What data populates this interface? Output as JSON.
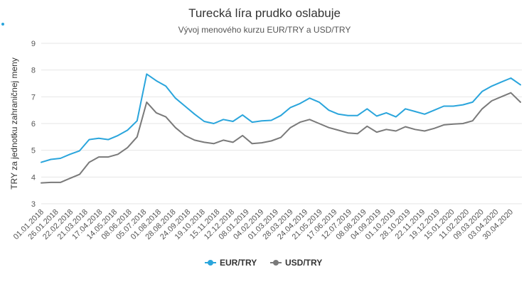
{
  "chart_data": {
    "type": "line",
    "title": "Turecká líra prudko oslabuje",
    "subtitle": "Vývoj menového kurzu EUR/TRY a USD/TRY",
    "xlabel": "",
    "ylabel": "TRY za jednotku zahraničnej meny",
    "ylim": [
      3,
      9
    ],
    "yticks": [
      "3",
      "4",
      "5",
      "6",
      "7",
      "8",
      "9"
    ],
    "grid": true,
    "legend_position": "bottom-center",
    "x_tick_labels": [
      "01.01.2018",
      "26.01.2018",
      "22.02.2018",
      "21.03.2018",
      "17.04.2018",
      "14.05.2018",
      "08.06.2018",
      "05.07.2018",
      "01.08.2018",
      "28.08.2018",
      "24.09.2018",
      "19.10.2018",
      "15.11.2018",
      "12.12.2018",
      "08.01.2019",
      "04.02.2019",
      "01.03.2019",
      "28.03.2019",
      "24.04.2019",
      "21.05.2019",
      "17.06.2019",
      "12.07.2019",
      "08.08.2019",
      "04.09.2019",
      "01.10.2019",
      "28.10.2019",
      "22.11.2019",
      "19.12.2019",
      "15.01.2020",
      "11.02.2020",
      "09.03.2020",
      "03.04.2020",
      "30.04.2020"
    ],
    "series": [
      {
        "name": "EUR/TRY",
        "color": "#2aa5dc",
        "values": [
          4.55,
          4.66,
          4.7,
          4.85,
          4.98,
          5.4,
          5.45,
          5.4,
          5.55,
          5.75,
          6.1,
          7.85,
          7.6,
          7.4,
          6.95,
          6.65,
          6.35,
          6.08,
          6.0,
          6.15,
          6.08,
          6.32,
          6.05,
          6.1,
          6.12,
          6.3,
          6.6,
          6.75,
          6.95,
          6.8,
          6.5,
          6.35,
          6.3,
          6.3,
          6.55,
          6.28,
          6.4,
          6.25,
          6.55,
          6.45,
          6.35,
          6.5,
          6.65,
          6.65,
          6.7,
          6.8,
          7.2,
          7.4,
          7.55,
          7.7,
          7.45
        ]
      },
      {
        "name": "USD/TRY",
        "color": "#7a7a7a",
        "values": [
          3.78,
          3.8,
          3.8,
          3.95,
          4.1,
          4.55,
          4.75,
          4.75,
          4.85,
          5.1,
          5.5,
          6.8,
          6.4,
          6.25,
          5.85,
          5.55,
          5.38,
          5.3,
          5.25,
          5.38,
          5.3,
          5.55,
          5.25,
          5.28,
          5.35,
          5.48,
          5.85,
          6.05,
          6.15,
          6.0,
          5.85,
          5.75,
          5.65,
          5.62,
          5.9,
          5.68,
          5.78,
          5.72,
          5.88,
          5.78,
          5.72,
          5.82,
          5.95,
          5.98,
          6.0,
          6.1,
          6.55,
          6.85,
          7.0,
          7.15,
          6.8
        ]
      }
    ]
  }
}
